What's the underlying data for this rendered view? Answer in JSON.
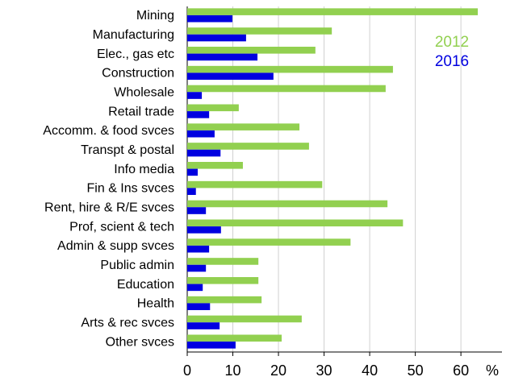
{
  "chart_data": {
    "type": "hbar",
    "categories": [
      "Mining",
      "Manufacturing",
      "Elec., gas etc",
      "Construction",
      "Wholesale",
      "Retail trade",
      "Accomm. & food svces",
      "Transpt & postal",
      "Info media",
      "Fin & Ins svces",
      "Rent, hire & R/E svces",
      "Prof, scient & tech",
      "Admin & supp svces",
      "Public admin",
      "Education",
      "Health",
      "Arts & rec svces",
      "Other svces"
    ],
    "series": [
      {
        "name": "2012",
        "color": "#92d050",
        "values": [
          63.7,
          31.7,
          28.1,
          45.1,
          43.5,
          11.3,
          24.6,
          26.7,
          12.2,
          29.6,
          43.9,
          47.3,
          35.8,
          15.6,
          15.6,
          16.3,
          25.1,
          20.7
        ]
      },
      {
        "name": "2016",
        "color": "#0000e0",
        "values": [
          9.9,
          12.9,
          15.4,
          18.9,
          3.2,
          4.8,
          6.0,
          7.3,
          2.3,
          1.9,
          4.1,
          7.4,
          4.8,
          4.1,
          3.4,
          5.0,
          7.1,
          10.6
        ]
      }
    ],
    "x_label": "%",
    "xlim": [
      0,
      69
    ],
    "xticks": [
      0,
      10,
      20,
      30,
      40,
      50,
      60
    ],
    "grid": true,
    "legend": "upper right"
  }
}
